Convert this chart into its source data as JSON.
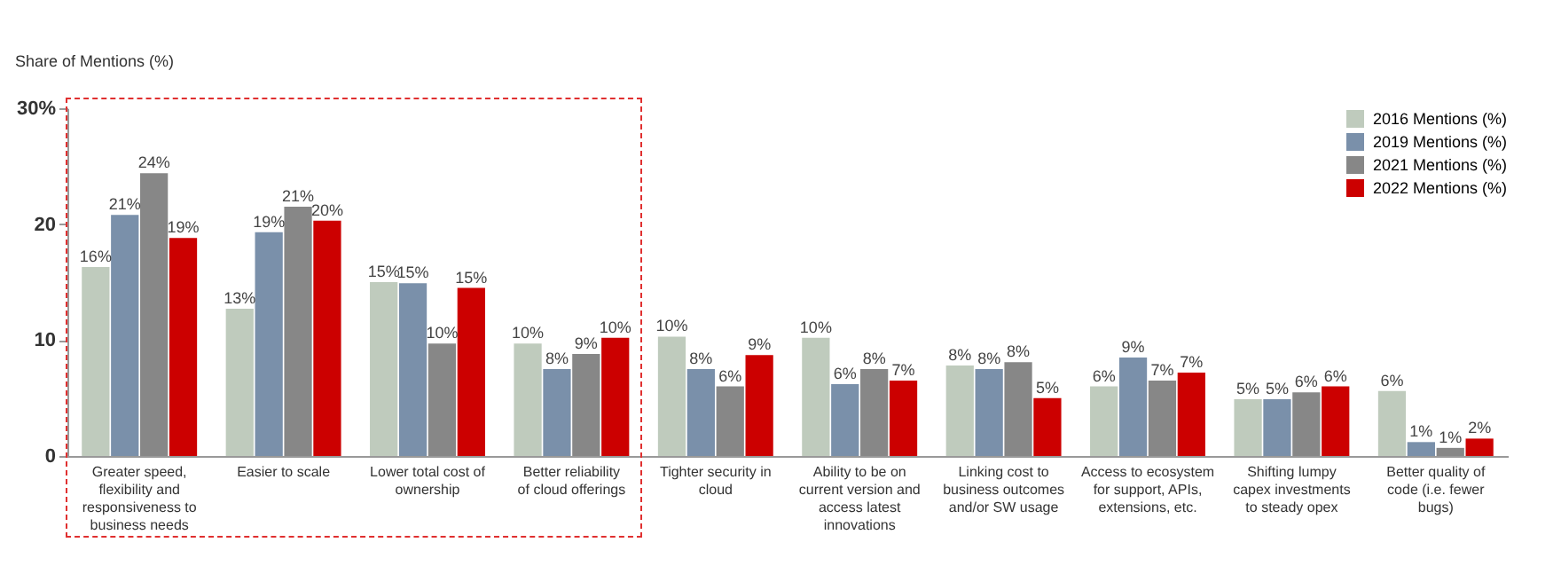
{
  "chart_data": {
    "type": "bar",
    "ylabel": "Share of Mentions (%)",
    "categories": [
      "Greater speed, flexibility and responsiveness to business needs",
      "Easier to scale",
      "Lower total cost of ownership",
      "Better reliability of cloud offerings",
      "Tighter security in cloud",
      "Ability to be on current version and access latest innovations",
      "Linking cost to business outcomes and/or SW usage",
      "Access to ecosystem for support, APIs, extensions, etc.",
      "Shifting lumpy capex investments to steady opex",
      "Better quality of code (i.e. fewer bugs)"
    ],
    "series": [
      {
        "name": "2016 Mentions (%)",
        "color": "#bfcbbd",
        "values": [
          16.3,
          12.7,
          15.0,
          9.7,
          10.3,
          10.2,
          7.8,
          6.0,
          4.9,
          5.6
        ],
        "value_labels": [
          "16%",
          "13%",
          "15%",
          "10%",
          "10%",
          "10%",
          "8%",
          "6%",
          "5%",
          "6%"
        ]
      },
      {
        "name": "2019 Mentions (%)",
        "color": "#7a90aa",
        "values": [
          20.8,
          19.3,
          14.9,
          7.5,
          7.5,
          6.2,
          7.5,
          8.5,
          4.9,
          1.2
        ],
        "value_labels": [
          "21%",
          "19%",
          "15%",
          "8%",
          "8%",
          "6%",
          "8%",
          "9%",
          "5%",
          "1%"
        ]
      },
      {
        "name": "2021 Mentions (%)",
        "color": "#878787",
        "values": [
          24.4,
          21.5,
          9.7,
          8.8,
          6.0,
          7.5,
          8.1,
          6.5,
          5.5,
          0.7
        ],
        "value_labels": [
          "24%",
          "21%",
          "10%",
          "9%",
          "6%",
          "8%",
          "8%",
          "7%",
          "6%",
          "1%"
        ]
      },
      {
        "name": "2022 Mentions (%)",
        "color": "#cc0000",
        "values": [
          18.8,
          20.3,
          14.5,
          10.2,
          8.7,
          6.5,
          5.0,
          7.2,
          6.0,
          1.5
        ],
        "value_labels": [
          "19%",
          "20%",
          "15%",
          "10%",
          "9%",
          "7%",
          "5%",
          "7%",
          "6%",
          "2%"
        ]
      }
    ],
    "ylim": [
      0,
      30
    ],
    "yticks": [
      0,
      10,
      20,
      {
        "value": 30,
        "label": "30%"
      }
    ],
    "grid": false,
    "legend": "top right"
  }
}
